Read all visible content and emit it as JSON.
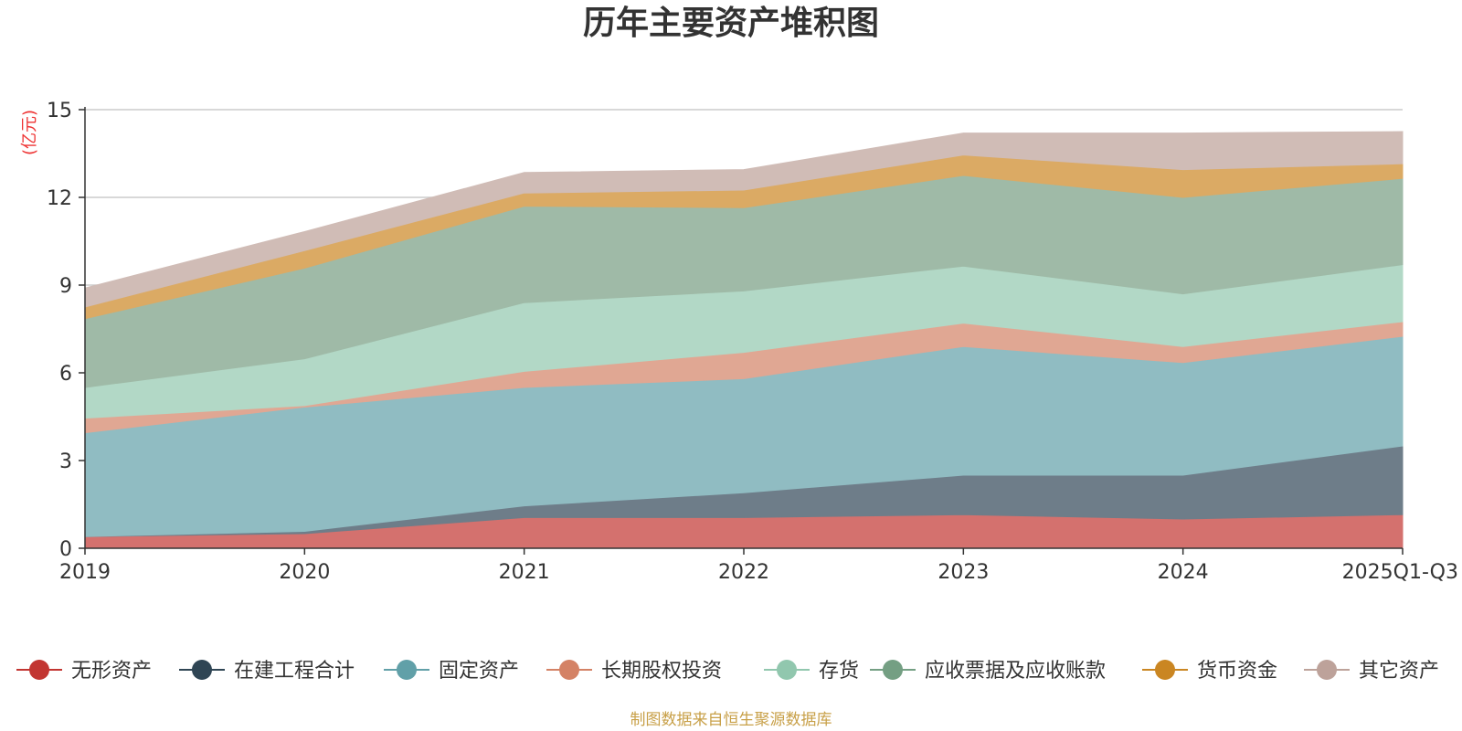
{
  "chart_data": {
    "type": "area",
    "stacked": true,
    "title": "历年主要资产堆积图",
    "unit": "(亿元)",
    "source": "制图数据来自恒生聚源数据库",
    "categories": [
      "2019",
      "2020",
      "2021",
      "2022",
      "2023",
      "2024",
      "2025Q1-Q3"
    ],
    "ylim": [
      0,
      15
    ],
    "yticks": [
      0,
      3,
      6,
      9,
      12,
      15
    ],
    "grid": true,
    "legend_position": "bottom",
    "series": [
      {
        "name": "无形资产",
        "color": "#c23531",
        "fill": "#d4716e",
        "values": [
          0.4,
          0.5,
          1.05,
          1.05,
          1.15,
          1.0,
          1.15
        ]
      },
      {
        "name": "在建工程合计",
        "color": "#2f4554",
        "fill": "#6e7d89",
        "values": [
          0.0,
          0.08,
          0.4,
          0.85,
          1.35,
          1.5,
          2.35
        ]
      },
      {
        "name": "固定资产",
        "color": "#61a0a8",
        "fill": "#90bcc2",
        "values": [
          3.55,
          4.25,
          4.05,
          3.9,
          4.4,
          3.85,
          3.75
        ]
      },
      {
        "name": "长期股权投资",
        "color": "#d48265",
        "fill": "#e0a793",
        "values": [
          0.5,
          0.05,
          0.55,
          0.9,
          0.8,
          0.55,
          0.5
        ]
      },
      {
        "name": "存货",
        "color": "#91c7ae",
        "fill": "#b2d8c6",
        "values": [
          1.05,
          1.6,
          2.35,
          2.1,
          1.95,
          1.8,
          1.95
        ]
      },
      {
        "name": "应收票据及应收账款",
        "color": "#749f83",
        "fill": "#9fbaa7",
        "values": [
          2.35,
          3.1,
          3.3,
          2.85,
          3.1,
          3.3,
          2.95
        ]
      },
      {
        "name": "货币资金",
        "color": "#ca8622",
        "fill": "#dbaa64",
        "values": [
          0.4,
          0.6,
          0.45,
          0.6,
          0.7,
          0.95,
          0.5
        ]
      },
      {
        "name": "其它资产",
        "color": "#bda29a",
        "fill": "#d0bcb6",
        "values": [
          0.65,
          0.65,
          0.7,
          0.7,
          0.75,
          1.25,
          1.1
        ]
      }
    ]
  }
}
